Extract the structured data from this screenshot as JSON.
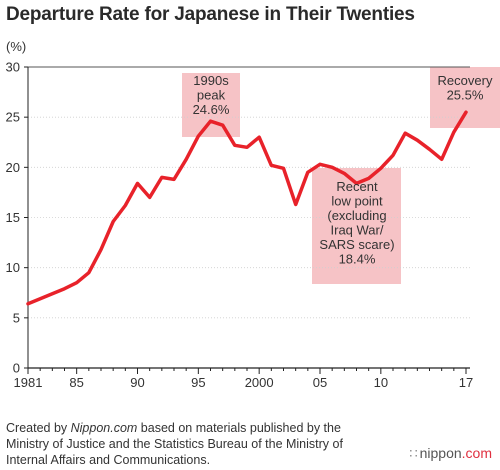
{
  "chart_title": "Departure Rate for Japanese in Their Twenties",
  "unit_label": "(%)",
  "source": {
    "prefix": "Created by ",
    "brand_italic": "Nippon.com",
    "rest": " based on materials published by the Ministry of Justice and the Statistics Bureau of the Ministry of Internal Affairs and Communications."
  },
  "brand": {
    "name": "nippon",
    "suffix": ".com",
    "mark": "∷"
  },
  "colors": {
    "line": "#e8222a",
    "annotation_fill": "#f6c3c6",
    "grid": "#cfcfcf",
    "axis": "#222222"
  },
  "chart_data": {
    "type": "line",
    "title": "Departure Rate for Japanese in Their Twenties",
    "ylabel": "(%)",
    "xlabel": "",
    "ylim": [
      0,
      30
    ],
    "xlim": [
      1981,
      2017
    ],
    "yticks": [
      0,
      5,
      10,
      15,
      20,
      25,
      30
    ],
    "xticks": [
      {
        "value": 1981,
        "label": "1981"
      },
      {
        "value": 1985,
        "label": "85"
      },
      {
        "value": 1990,
        "label": "90"
      },
      {
        "value": 1995,
        "label": "95"
      },
      {
        "value": 2000,
        "label": "2000"
      },
      {
        "value": 2005,
        "label": "05"
      },
      {
        "value": 2010,
        "label": "10"
      },
      {
        "value": 2017,
        "label": "17"
      }
    ],
    "grid": "horizontal",
    "series": [
      {
        "x": [
          1981,
          1982,
          1983,
          1984,
          1985,
          1986,
          1987,
          1988,
          1989,
          1990,
          1991,
          1992,
          1993,
          1994,
          1995,
          1996,
          1997,
          1998,
          1999,
          2000,
          2001,
          2002,
          2003,
          2004,
          2005,
          2006,
          2007,
          2008,
          2009,
          2010,
          2011,
          2012,
          2013,
          2014,
          2015,
          2016,
          2017
        ],
        "y": [
          6.4,
          6.9,
          7.4,
          7.9,
          8.5,
          9.5,
          11.8,
          14.6,
          16.2,
          18.4,
          17.0,
          19.0,
          18.8,
          20.8,
          23.1,
          24.6,
          24.2,
          22.2,
          22.0,
          23.0,
          20.2,
          19.9,
          16.3,
          19.5,
          20.3,
          20.0,
          19.4,
          18.4,
          18.9,
          19.9,
          21.2,
          23.4,
          22.7,
          21.8,
          20.8,
          23.5,
          25.5
        ]
      }
    ],
    "annotations": [
      {
        "lines": [
          "1990s",
          "peak",
          "24.6%"
        ],
        "x": 1996,
        "y": 24.6
      },
      {
        "lines": [
          "Recent",
          "low point",
          "(excluding",
          "Iraq War/",
          "SARS scare)",
          "18.4%"
        ],
        "x": 2008,
        "y": 18.4
      },
      {
        "lines": [
          "Recovery",
          "25.5%"
        ],
        "x": 2017,
        "y": 25.5
      }
    ]
  }
}
